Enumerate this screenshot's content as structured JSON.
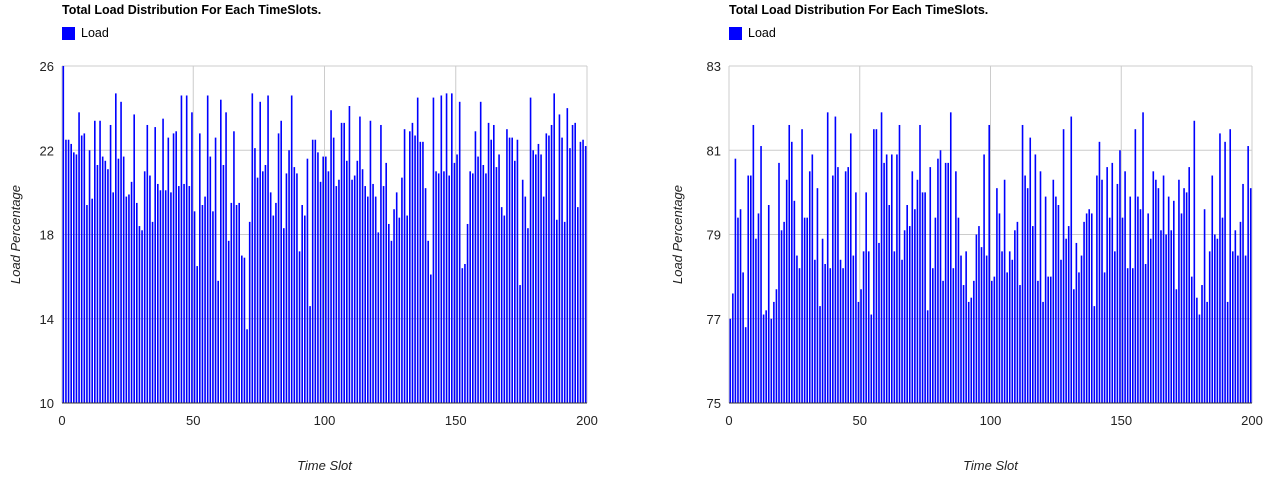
{
  "colors": {
    "bar": "#0000ff",
    "grid": "#cccccc",
    "baseline": "#333333"
  },
  "chart_data": [
    {
      "type": "bar",
      "title": "Total Load Distribution For Each TimeSlots.",
      "legend": [
        "Load"
      ],
      "legend_position": "top-left",
      "xlabel": "Time Slot",
      "ylabel": "Load Percentage",
      "xlim": [
        0,
        200
      ],
      "ylim": [
        10,
        26
      ],
      "xticks": [
        0,
        50,
        100,
        150,
        200
      ],
      "yticks": [
        10,
        14,
        18,
        22,
        26
      ],
      "grid": true,
      "series": [
        {
          "name": "Load",
          "values": [
            26.0,
            22.5,
            22.5,
            22.3,
            21.9,
            21.8,
            23.8,
            22.7,
            22.8,
            19.4,
            22.0,
            19.7,
            23.4,
            21.3,
            23.4,
            21.7,
            21.5,
            21.1,
            23.2,
            20.0,
            24.7,
            21.6,
            24.3,
            21.7,
            19.8,
            19.9,
            20.5,
            23.7,
            19.5,
            18.4,
            18.2,
            21.0,
            23.2,
            20.8,
            18.6,
            23.1,
            20.4,
            20.1,
            23.5,
            20.1,
            22.6,
            20.0,
            22.8,
            22.9,
            20.3,
            24.6,
            20.4,
            24.6,
            20.3,
            23.8,
            19.1,
            16.5,
            22.8,
            19.4,
            19.8,
            24.6,
            21.7,
            19.1,
            22.6,
            15.8,
            24.4,
            21.3,
            23.8,
            17.7,
            19.5,
            22.9,
            19.4,
            19.5,
            17.0,
            16.9,
            13.5,
            18.6,
            24.7,
            22.1,
            20.7,
            24.3,
            21.0,
            21.3,
            24.6,
            20.0,
            18.9,
            19.5,
            22.8,
            23.4,
            18.3,
            20.9,
            22.0,
            24.6,
            21.2,
            20.9,
            17.2,
            19.4,
            18.9,
            21.6,
            14.6,
            22.5,
            22.5,
            21.9,
            20.5,
            21.7,
            21.7,
            21.0,
            23.9,
            22.6,
            20.3,
            20.6,
            23.3,
            23.3,
            21.5,
            24.1,
            20.6,
            20.8,
            21.5,
            23.6,
            21.1,
            20.3,
            19.8,
            23.4,
            20.4,
            19.8,
            18.1,
            23.2,
            20.3,
            21.4,
            18.5,
            17.7,
            19.2,
            20.0,
            18.8,
            20.7,
            23.0,
            18.9,
            22.9,
            23.3,
            22.7,
            24.5,
            22.4,
            22.4,
            20.2,
            17.7,
            16.1,
            24.5,
            21.0,
            20.9,
            24.6,
            21.0,
            24.7,
            20.8,
            24.7,
            21.4,
            21.8,
            24.3,
            16.4,
            16.6,
            18.5,
            21.0,
            20.9,
            22.9,
            21.7,
            24.3,
            21.3,
            20.9,
            23.3,
            22.5,
            23.2,
            21.2,
            21.8,
            19.3,
            18.9,
            23.0,
            22.6,
            22.6,
            21.5,
            22.5,
            15.6,
            20.6,
            19.8,
            18.3,
            24.5,
            22.0,
            21.8,
            22.3,
            21.8,
            19.8,
            22.8,
            22.7,
            23.2,
            24.7,
            18.7,
            23.7,
            22.6,
            18.6,
            24.0,
            22.1,
            23.2,
            23.3,
            19.3,
            22.4,
            22.5,
            22.2
          ]
        }
      ]
    },
    {
      "type": "bar",
      "title": "Total Load Distribution For Each TimeSlots.",
      "legend": [
        "Load"
      ],
      "legend_position": "top-left",
      "xlabel": "Time Slot",
      "ylabel": "Load Percentage",
      "xlim": [
        0,
        200
      ],
      "ylim": [
        75,
        83
      ],
      "xticks": [
        0,
        50,
        100,
        150,
        200
      ],
      "yticks": [
        75,
        77,
        79,
        81,
        83
      ],
      "grid": true,
      "series": [
        {
          "name": "Load",
          "values": [
            77.0,
            77.6,
            80.8,
            79.4,
            79.6,
            78.1,
            76.8,
            80.4,
            80.4,
            81.6,
            78.9,
            79.5,
            81.1,
            77.1,
            77.2,
            79.7,
            77.0,
            77.4,
            77.7,
            80.7,
            79.1,
            79.3,
            80.3,
            81.6,
            81.2,
            79.8,
            78.5,
            78.2,
            81.5,
            79.4,
            79.4,
            80.5,
            80.9,
            78.4,
            80.1,
            77.3,
            78.9,
            78.3,
            81.9,
            78.2,
            80.4,
            81.8,
            80.6,
            78.4,
            78.2,
            80.5,
            80.6,
            81.4,
            78.5,
            80.0,
            77.4,
            77.7,
            78.6,
            80.0,
            78.6,
            77.1,
            81.5,
            81.5,
            78.8,
            81.9,
            80.7,
            80.9,
            79.7,
            80.9,
            78.6,
            80.9,
            81.6,
            78.4,
            79.1,
            79.7,
            79.2,
            80.5,
            79.6,
            80.3,
            81.6,
            80.0,
            80.0,
            77.2,
            80.6,
            78.2,
            79.4,
            80.8,
            81.0,
            77.9,
            80.7,
            80.7,
            81.9,
            78.2,
            80.5,
            79.4,
            78.5,
            77.8,
            78.6,
            77.4,
            77.5,
            77.9,
            79.0,
            79.2,
            78.7,
            80.9,
            78.5,
            81.6,
            77.9,
            78.0,
            80.1,
            79.5,
            78.6,
            80.3,
            78.1,
            78.6,
            78.4,
            79.1,
            79.3,
            77.8,
            81.6,
            80.4,
            80.1,
            81.3,
            79.2,
            80.9,
            77.9,
            80.5,
            77.4,
            79.9,
            78.0,
            78.0,
            80.3,
            79.9,
            79.7,
            78.4,
            81.5,
            78.9,
            79.2,
            81.8,
            77.7,
            78.8,
            78.1,
            78.5,
            79.3,
            79.5,
            79.6,
            79.5,
            77.3,
            80.4,
            81.2,
            80.3,
            78.1,
            80.6,
            79.4,
            80.7,
            78.6,
            80.2,
            81.0,
            79.4,
            80.5,
            78.2,
            79.9,
            78.2,
            81.5,
            79.9,
            79.6,
            81.9,
            78.3,
            79.5,
            78.9,
            80.5,
            80.3,
            80.1,
            79.1,
            80.4,
            79.0,
            79.9,
            79.1,
            79.8,
            77.7,
            80.3,
            79.5,
            80.1,
            80.0,
            80.6,
            78.0,
            81.7,
            77.5,
            77.1,
            77.8,
            79.6,
            77.4,
            78.6,
            80.4,
            79.0,
            78.9,
            81.4,
            79.4,
            81.2,
            77.4,
            81.5,
            78.6,
            79.1,
            78.5,
            79.3,
            80.2,
            78.5,
            81.1,
            80.1
          ]
        }
      ]
    }
  ]
}
